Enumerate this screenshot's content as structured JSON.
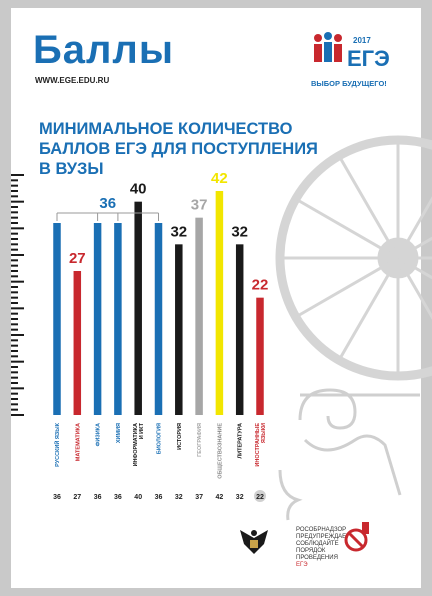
{
  "header": {
    "title": "Баллы",
    "url": "WWW.EGE.EDU.RU",
    "logo_text": "ЕГЭ",
    "logo_year": "2017",
    "logo_slogan": "ВЫБОР БУДУЩЕГО!"
  },
  "heading": {
    "line1": "МИНИМАЛЬНОЕ КОЛИЧЕСТВО",
    "line2": "БАЛЛОВ ЕГЭ ДЛЯ ПОСТУПЛЕНИЯ",
    "line3": "В ВУЗЫ"
  },
  "footer": {
    "line1": "РОСОБРНАДЗОР",
    "line2": "ПРЕДУПРЕЖДАЕТ:",
    "line3": "СОБЛЮДАЙТЕ",
    "line4": "ПОРЯДОК",
    "line5": "ПРОВЕДЕНИЯ",
    "line6": "ЕГЭ"
  },
  "colors": {
    "blue": "#1a6fb4",
    "red": "#c8282e",
    "black": "#1a1a1a",
    "gray": "#a6a6a6",
    "yellow": "#f2e600",
    "decor": "#d5d5d5"
  },
  "chart_data": {
    "type": "bar",
    "title": "МИНИМАЛЬНОЕ КОЛИЧЕСТВО БАЛЛОВ ЕГЭ ДЛЯ ПОСТУПЛЕНИЯ В ВУЗЫ",
    "categories": [
      "РУССКИЙ ЯЗЫК",
      "МАТЕМАТИКА",
      "ФИЗИКА",
      "ХИМИЯ",
      "ИНФОРМАТИКА И ИКТ",
      "БИОЛОГИЯ",
      "ИСТОРИЯ",
      "ГЕОГРАФИЯ",
      "ОБЩЕСТВОЗНАНИЕ",
      "ЛИТЕРАТУРА",
      "ИНОСТРАННЫЕ ЯЗЫКИ"
    ],
    "values": [
      36,
      27,
      36,
      36,
      40,
      36,
      32,
      37,
      42,
      32,
      22
    ],
    "bar_colors": [
      "blue",
      "red",
      "blue",
      "blue",
      "black",
      "blue",
      "black",
      "gray",
      "yellow",
      "black",
      "red"
    ],
    "value_labels": [
      {
        "text": "36",
        "color": "blue",
        "covers": [
          0,
          2,
          3,
          5
        ]
      },
      {
        "text": "27",
        "color": "red",
        "covers": [
          1
        ]
      },
      {
        "text": "40",
        "color": "black",
        "covers": [
          4
        ]
      },
      {
        "text": "32",
        "color": "black",
        "covers": [
          6
        ]
      },
      {
        "text": "37",
        "color": "gray",
        "covers": [
          7
        ]
      },
      {
        "text": "42",
        "color": "yellow",
        "covers": [
          8
        ]
      },
      {
        "text": "32",
        "color": "black",
        "covers": [
          9
        ]
      },
      {
        "text": "22",
        "color": "red",
        "covers": [
          10
        ]
      }
    ],
    "bottom_labels": [
      "36",
      "27",
      "36",
      "36",
      "40",
      "36",
      "32",
      "37",
      "42",
      "32",
      "22"
    ],
    "ylim": [
      0,
      45
    ],
    "xlabel": "",
    "ylabel": ""
  }
}
